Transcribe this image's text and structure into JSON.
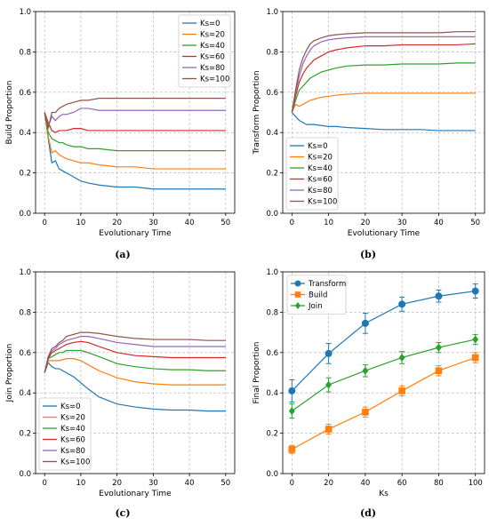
{
  "colors": {
    "Ks=0": "#1f77b4",
    "Ks=20": "#ff7f0e",
    "Ks=40": "#2ca02c",
    "Ks=60": "#d62728",
    "Ks=80": "#9467bd",
    "Ks=100": "#8c564b",
    "Transform": "#1f77b4",
    "Build": "#ff7f0e",
    "Join": "#2ca02c"
  },
  "chart_data": [
    {
      "id": "a",
      "caption": "(a)",
      "type": "line",
      "xlabel": "Evolutionary Time",
      "ylabel": "Build Proportion",
      "xlim": [
        -2.5,
        52.5
      ],
      "ylim": [
        0,
        1
      ],
      "xticks": [
        0,
        10,
        20,
        30,
        40,
        50
      ],
      "yticks": [
        0.0,
        0.2,
        0.4,
        0.6,
        0.8,
        1.0
      ],
      "grid": true,
      "legend": "top-right",
      "x": [
        0,
        1,
        2,
        3,
        4,
        5,
        6,
        8,
        10,
        12,
        15,
        20,
        25,
        30,
        35,
        40,
        45,
        50
      ],
      "series": [
        {
          "name": "Ks=0",
          "values": [
            0.5,
            0.37,
            0.25,
            0.26,
            0.22,
            0.21,
            0.2,
            0.18,
            0.16,
            0.15,
            0.14,
            0.13,
            0.13,
            0.12,
            0.12,
            0.12,
            0.12,
            0.12
          ]
        },
        {
          "name": "Ks=20",
          "values": [
            0.5,
            0.38,
            0.3,
            0.31,
            0.29,
            0.28,
            0.27,
            0.26,
            0.25,
            0.25,
            0.24,
            0.23,
            0.23,
            0.22,
            0.22,
            0.22,
            0.22,
            0.22
          ]
        },
        {
          "name": "Ks=40",
          "values": [
            0.5,
            0.4,
            0.37,
            0.36,
            0.35,
            0.35,
            0.34,
            0.33,
            0.33,
            0.32,
            0.32,
            0.31,
            0.31,
            0.31,
            0.31,
            0.31,
            0.31,
            0.31
          ]
        },
        {
          "name": "Ks=60",
          "values": [
            0.5,
            0.45,
            0.41,
            0.4,
            0.41,
            0.41,
            0.41,
            0.42,
            0.42,
            0.41,
            0.41,
            0.41,
            0.41,
            0.41,
            0.41,
            0.41,
            0.41,
            0.41
          ]
        },
        {
          "name": "Ks=80",
          "values": [
            0.5,
            0.43,
            0.48,
            0.46,
            0.48,
            0.49,
            0.49,
            0.5,
            0.52,
            0.52,
            0.51,
            0.51,
            0.51,
            0.51,
            0.51,
            0.51,
            0.51,
            0.51
          ]
        },
        {
          "name": "Ks=100",
          "values": [
            0.5,
            0.42,
            0.5,
            0.5,
            0.52,
            0.53,
            0.54,
            0.55,
            0.56,
            0.56,
            0.57,
            0.57,
            0.57,
            0.57,
            0.57,
            0.57,
            0.57,
            0.57
          ]
        }
      ]
    },
    {
      "id": "b",
      "caption": "(b)",
      "type": "line",
      "xlabel": "Evolutionary Time",
      "ylabel": "Transform Proportion",
      "xlim": [
        -2.5,
        52.5
      ],
      "ylim": [
        0,
        1
      ],
      "xticks": [
        0,
        10,
        20,
        30,
        40,
        50
      ],
      "yticks": [
        0.0,
        0.2,
        0.4,
        0.6,
        0.8,
        1.0
      ],
      "grid": true,
      "legend": "bottom-left",
      "x": [
        0,
        1,
        2,
        3,
        4,
        5,
        6,
        8,
        10,
        12,
        15,
        20,
        25,
        30,
        35,
        40,
        45,
        50
      ],
      "series": [
        {
          "name": "Ks=0",
          "values": [
            0.5,
            0.48,
            0.46,
            0.45,
            0.44,
            0.44,
            0.44,
            0.435,
            0.43,
            0.43,
            0.425,
            0.42,
            0.415,
            0.415,
            0.415,
            0.41,
            0.41,
            0.41
          ]
        },
        {
          "name": "Ks=20",
          "values": [
            0.5,
            0.54,
            0.53,
            0.54,
            0.55,
            0.56,
            0.565,
            0.575,
            0.58,
            0.585,
            0.59,
            0.595,
            0.595,
            0.595,
            0.595,
            0.595,
            0.595,
            0.595
          ]
        },
        {
          "name": "Ks=40",
          "values": [
            0.5,
            0.56,
            0.61,
            0.63,
            0.65,
            0.67,
            0.68,
            0.7,
            0.71,
            0.72,
            0.73,
            0.735,
            0.735,
            0.74,
            0.74,
            0.74,
            0.745,
            0.745
          ]
        },
        {
          "name": "Ks=60",
          "values": [
            0.5,
            0.58,
            0.65,
            0.69,
            0.72,
            0.74,
            0.76,
            0.78,
            0.8,
            0.81,
            0.82,
            0.83,
            0.83,
            0.835,
            0.835,
            0.835,
            0.835,
            0.84
          ]
        },
        {
          "name": "Ks=80",
          "values": [
            0.5,
            0.6,
            0.68,
            0.74,
            0.78,
            0.81,
            0.83,
            0.85,
            0.86,
            0.865,
            0.87,
            0.875,
            0.875,
            0.875,
            0.875,
            0.875,
            0.875,
            0.875
          ]
        },
        {
          "name": "Ks=100",
          "values": [
            0.5,
            0.61,
            0.71,
            0.77,
            0.81,
            0.84,
            0.855,
            0.87,
            0.88,
            0.885,
            0.89,
            0.895,
            0.895,
            0.895,
            0.895,
            0.895,
            0.9,
            0.9
          ]
        }
      ]
    },
    {
      "id": "c",
      "caption": "(c)",
      "type": "line",
      "xlabel": "Evolutionary Time",
      "ylabel": "Join Proportion",
      "xlim": [
        -2.5,
        52.5
      ],
      "ylim": [
        0,
        1
      ],
      "xticks": [
        0,
        10,
        20,
        30,
        40,
        50
      ],
      "yticks": [
        0.0,
        0.2,
        0.4,
        0.6,
        0.8,
        1.0
      ],
      "grid": true,
      "legend": "bottom-left",
      "x": [
        0,
        1,
        2,
        3,
        4,
        5,
        6,
        8,
        10,
        12,
        15,
        20,
        25,
        30,
        35,
        40,
        45,
        50
      ],
      "series": [
        {
          "name": "Ks=0",
          "values": [
            0.5,
            0.55,
            0.53,
            0.52,
            0.52,
            0.51,
            0.5,
            0.48,
            0.45,
            0.42,
            0.38,
            0.345,
            0.33,
            0.32,
            0.315,
            0.315,
            0.31,
            0.31
          ]
        },
        {
          "name": "Ks=20",
          "values": [
            0.5,
            0.56,
            0.56,
            0.56,
            0.56,
            0.565,
            0.57,
            0.57,
            0.56,
            0.54,
            0.51,
            0.475,
            0.455,
            0.445,
            0.44,
            0.44,
            0.44,
            0.44
          ]
        },
        {
          "name": "Ks=40",
          "values": [
            0.5,
            0.57,
            0.58,
            0.59,
            0.6,
            0.6,
            0.61,
            0.61,
            0.61,
            0.6,
            0.58,
            0.545,
            0.53,
            0.52,
            0.515,
            0.515,
            0.51,
            0.51
          ]
        },
        {
          "name": "Ks=60",
          "values": [
            0.5,
            0.57,
            0.6,
            0.61,
            0.62,
            0.63,
            0.64,
            0.65,
            0.655,
            0.65,
            0.63,
            0.6,
            0.585,
            0.58,
            0.575,
            0.575,
            0.575,
            0.575
          ]
        },
        {
          "name": "Ks=80",
          "values": [
            0.5,
            0.58,
            0.61,
            0.62,
            0.64,
            0.65,
            0.66,
            0.67,
            0.68,
            0.68,
            0.67,
            0.65,
            0.64,
            0.63,
            0.63,
            0.63,
            0.63,
            0.63
          ]
        },
        {
          "name": "Ks=100",
          "values": [
            0.5,
            0.58,
            0.62,
            0.63,
            0.65,
            0.66,
            0.68,
            0.69,
            0.7,
            0.7,
            0.695,
            0.68,
            0.67,
            0.665,
            0.665,
            0.665,
            0.66,
            0.66
          ]
        }
      ]
    },
    {
      "id": "d",
      "caption": "(d)",
      "type": "line",
      "xlabel": "Ks",
      "ylabel": "Final Proportion",
      "xlim": [
        -5,
        105
      ],
      "ylim": [
        0,
        1
      ],
      "xticks": [
        0,
        20,
        40,
        60,
        80,
        100
      ],
      "yticks": [
        0.0,
        0.2,
        0.4,
        0.6,
        0.8,
        1.0
      ],
      "grid": true,
      "legend": "top-left",
      "x": [
        0,
        20,
        40,
        60,
        80,
        100
      ],
      "series": [
        {
          "name": "Transform",
          "marker": "circle",
          "values": [
            0.41,
            0.595,
            0.745,
            0.84,
            0.88,
            0.905
          ],
          "errors": [
            0.055,
            0.05,
            0.05,
            0.035,
            0.03,
            0.035
          ]
        },
        {
          "name": "Build",
          "marker": "square",
          "values": [
            0.12,
            0.22,
            0.305,
            0.41,
            0.51,
            0.575
          ],
          "errors": [
            0.02,
            0.025,
            0.025,
            0.025,
            0.025,
            0.025
          ]
        },
        {
          "name": "Join",
          "marker": "diamond",
          "values": [
            0.31,
            0.44,
            0.51,
            0.575,
            0.625,
            0.665
          ],
          "errors": [
            0.035,
            0.035,
            0.03,
            0.03,
            0.025,
            0.025
          ]
        }
      ]
    }
  ]
}
